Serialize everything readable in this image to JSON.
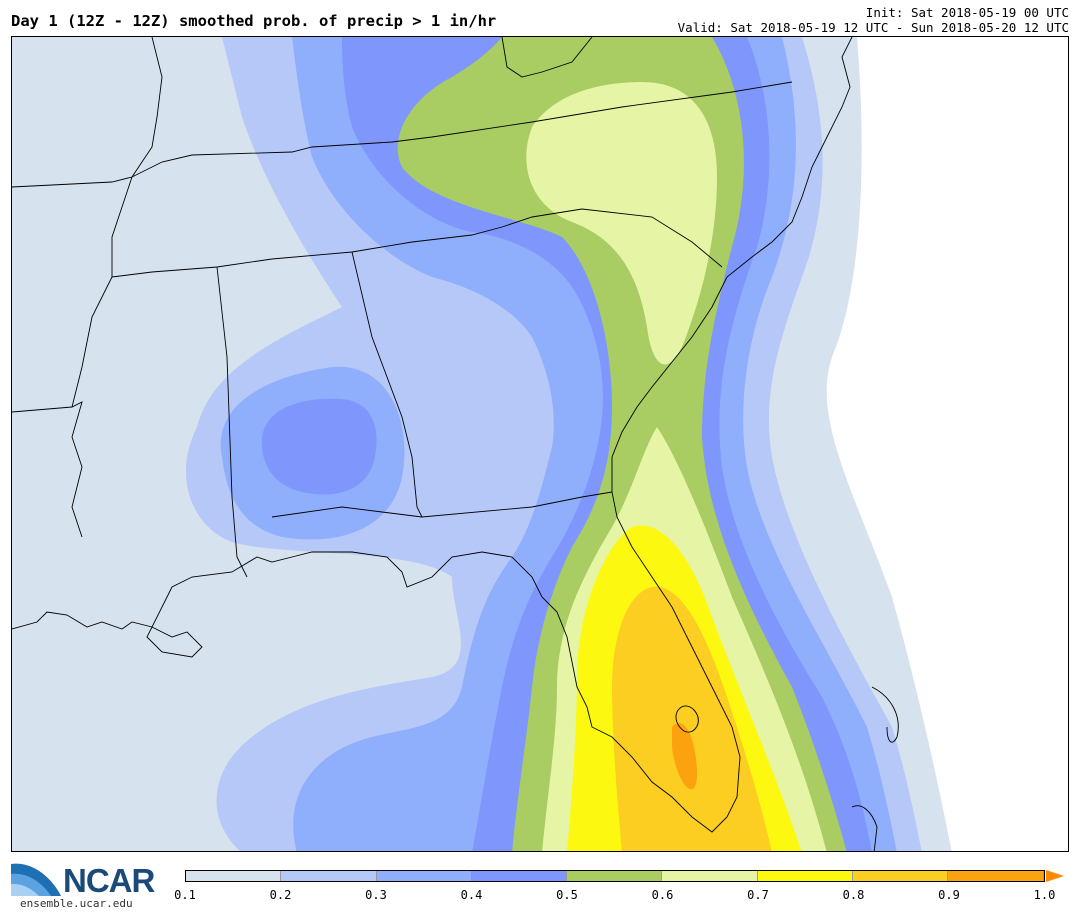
{
  "header": {
    "title": "Day 1 (12Z - 12Z) smoothed prob. of precip > 1 in/hr",
    "init": "Init: Sat 2018-05-19 00 UTC",
    "valid": "Valid: Sat 2018-05-19 12 UTC - Sun 2018-05-20 12 UTC"
  },
  "logo": {
    "name": "NCAR",
    "url": "ensemble.ucar.edu"
  },
  "colorbar": {
    "colors": [
      "#d6e2ed",
      "#b5c8f8",
      "#8faefc",
      "#7f96fc",
      "#a9cc63",
      "#e6f4a5",
      "#fcf80f",
      "#fbce21",
      "#fca20f"
    ],
    "labels": [
      "0.1",
      "0.2",
      "0.3",
      "0.4",
      "0.5",
      "0.6",
      "0.7",
      "0.8",
      "0.9",
      "1.0"
    ],
    "arrow_color": "#ff8800"
  }
}
